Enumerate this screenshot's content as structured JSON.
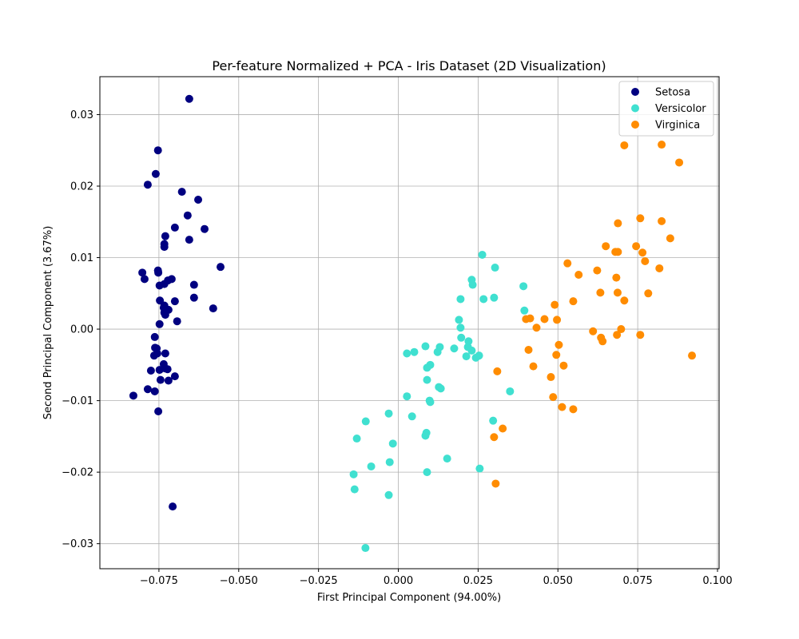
{
  "chart_data": {
    "type": "scatter",
    "title": "Per-feature Normalized + PCA - Iris Dataset (2D Visualization)",
    "xlabel": "First Principal Component (94.00%)",
    "ylabel": "Second Principal Component (3.67%)",
    "xlim": [
      -0.0935,
      0.1005
    ],
    "ylim": [
      -0.0335,
      0.0353
    ],
    "xticks": [
      -0.075,
      -0.05,
      -0.025,
      0.0,
      0.025,
      0.05,
      0.075,
      0.1
    ],
    "xtick_labels": [
      "−0.075",
      "−0.050",
      "−0.025",
      "0.000",
      "0.025",
      "0.050",
      "0.075",
      "0.100"
    ],
    "yticks": [
      -0.03,
      -0.02,
      -0.01,
      0.0,
      0.01,
      0.02,
      0.03
    ],
    "ytick_labels": [
      "−0.03",
      "−0.02",
      "−0.01",
      "0.00",
      "0.01",
      "0.02",
      "0.03"
    ],
    "grid": true,
    "legend_position": "top-right",
    "series": [
      {
        "name": "Setosa",
        "color": "#000080",
        "points": [
          [
            -0.0655,
            0.0322
          ],
          [
            -0.0753,
            0.025
          ],
          [
            -0.076,
            0.0217
          ],
          [
            -0.0785,
            0.0202
          ],
          [
            -0.066,
            0.0159
          ],
          [
            -0.0678,
            0.0192
          ],
          [
            -0.0627,
            0.0181
          ],
          [
            -0.07,
            0.0142
          ],
          [
            -0.0607,
            0.014
          ],
          [
            -0.0655,
            0.0125
          ],
          [
            -0.073,
            0.013
          ],
          [
            -0.0733,
            0.0119
          ],
          [
            -0.0733,
            0.0115
          ],
          [
            -0.0557,
            0.0087
          ],
          [
            -0.0802,
            0.0079
          ],
          [
            -0.0753,
            0.0082
          ],
          [
            -0.0752,
            0.0079
          ],
          [
            -0.0795,
            0.007
          ],
          [
            -0.071,
            0.007
          ],
          [
            -0.0722,
            0.0068
          ],
          [
            -0.0733,
            0.0063
          ],
          [
            -0.0748,
            0.0061
          ],
          [
            -0.064,
            0.0062
          ],
          [
            -0.064,
            0.0044
          ],
          [
            -0.0747,
            0.004
          ],
          [
            -0.07,
            0.0039
          ],
          [
            -0.0733,
            0.0033
          ],
          [
            -0.072,
            0.0027
          ],
          [
            -0.0735,
            0.003
          ],
          [
            -0.0733,
            0.0023
          ],
          [
            -0.073,
            0.002
          ],
          [
            -0.058,
            0.0029
          ],
          [
            -0.0693,
            0.0011
          ],
          [
            -0.0748,
            0.0007
          ],
          [
            -0.0763,
            -0.0011
          ],
          [
            -0.0757,
            -0.0027
          ],
          [
            -0.0762,
            -0.0026
          ],
          [
            -0.0755,
            -0.0034
          ],
          [
            -0.0765,
            -0.0037
          ],
          [
            -0.073,
            -0.0034
          ],
          [
            -0.0735,
            -0.0049
          ],
          [
            -0.073,
            -0.0055
          ],
          [
            -0.0723,
            -0.0056
          ],
          [
            -0.0748,
            -0.0057
          ],
          [
            -0.0775,
            -0.0058
          ],
          [
            -0.07,
            -0.0066
          ],
          [
            -0.0745,
            -0.0071
          ],
          [
            -0.072,
            -0.0072
          ],
          [
            -0.0785,
            -0.0084
          ],
          [
            -0.0763,
            -0.0087
          ],
          [
            -0.083,
            -0.0093
          ],
          [
            -0.0752,
            -0.0115
          ],
          [
            -0.0707,
            -0.0248
          ]
        ]
      },
      {
        "name": "Versicolor",
        "color": "#40e0d0",
        "points": [
          [
            0.0263,
            0.0104
          ],
          [
            0.0303,
            0.0086
          ],
          [
            0.023,
            0.0069
          ],
          [
            0.0233,
            0.0062
          ],
          [
            0.0392,
            0.006
          ],
          [
            0.0267,
            0.0042
          ],
          [
            0.03,
            0.0044
          ],
          [
            0.0195,
            0.0042
          ],
          [
            0.0395,
            0.0026
          ],
          [
            0.019,
            0.0013
          ],
          [
            0.0195,
            0.0002
          ],
          [
            0.0085,
            -0.0024
          ],
          [
            0.013,
            -0.0025
          ],
          [
            0.0123,
            -0.0032
          ],
          [
            0.0175,
            -0.0027
          ],
          [
            0.005,
            -0.0032
          ],
          [
            0.0027,
            -0.0034
          ],
          [
            0.0197,
            -0.0012
          ],
          [
            0.022,
            -0.0017
          ],
          [
            0.0218,
            -0.0025
          ],
          [
            0.023,
            -0.003
          ],
          [
            0.0213,
            -0.0038
          ],
          [
            0.0243,
            -0.004
          ],
          [
            0.0253,
            -0.0037
          ],
          [
            0.01,
            -0.005
          ],
          [
            0.009,
            -0.0054
          ],
          [
            0.009,
            -0.0071
          ],
          [
            0.0127,
            -0.0081
          ],
          [
            0.0133,
            -0.0083
          ],
          [
            0.035,
            -0.0087
          ],
          [
            0.0027,
            -0.0094
          ],
          [
            0.0098,
            -0.01
          ],
          [
            0.01,
            -0.0102
          ],
          [
            -0.003,
            -0.0118
          ],
          [
            0.0043,
            -0.0122
          ],
          [
            -0.0102,
            -0.0129
          ],
          [
            0.0297,
            -0.0128
          ],
          [
            0.0088,
            -0.0145
          ],
          [
            0.0085,
            -0.0149
          ],
          [
            -0.013,
            -0.0153
          ],
          [
            -0.0017,
            -0.016
          ],
          [
            0.0153,
            -0.0181
          ],
          [
            -0.0027,
            -0.0186
          ],
          [
            -0.0085,
            -0.0192
          ],
          [
            0.0255,
            -0.0195
          ],
          [
            0.009,
            -0.02
          ],
          [
            -0.014,
            -0.0203
          ],
          [
            -0.0137,
            -0.0224
          ],
          [
            -0.003,
            -0.0232
          ],
          [
            -0.0103,
            -0.0306
          ]
        ]
      },
      {
        "name": "Virginica",
        "color": "#ff8c00",
        "points": [
          [
            0.0708,
            0.0257
          ],
          [
            0.0825,
            0.0258
          ],
          [
            0.088,
            0.0233
          ],
          [
            0.0758,
            0.0155
          ],
          [
            0.0688,
            0.0148
          ],
          [
            0.0825,
            0.0151
          ],
          [
            0.0852,
            0.0127
          ],
          [
            0.065,
            0.0116
          ],
          [
            0.0745,
            0.0116
          ],
          [
            0.0765,
            0.0107
          ],
          [
            0.068,
            0.0108
          ],
          [
            0.0688,
            0.0108
          ],
          [
            0.0773,
            0.0095
          ],
          [
            0.053,
            0.0092
          ],
          [
            0.0818,
            0.0085
          ],
          [
            0.0623,
            0.0082
          ],
          [
            0.0565,
            0.0076
          ],
          [
            0.0683,
            0.0072
          ],
          [
            0.0633,
            0.0051
          ],
          [
            0.0687,
            0.0051
          ],
          [
            0.0783,
            0.005
          ],
          [
            0.0708,
            0.004
          ],
          [
            0.0548,
            0.0039
          ],
          [
            0.049,
            0.0034
          ],
          [
            0.04,
            0.0014
          ],
          [
            0.0413,
            0.0015
          ],
          [
            0.0458,
            0.0014
          ],
          [
            0.0497,
            0.0013
          ],
          [
            0.0433,
            0.0002
          ],
          [
            0.061,
            -0.0003
          ],
          [
            0.0698,
            0.0
          ],
          [
            0.0685,
            -0.0008
          ],
          [
            0.0758,
            -0.0008
          ],
          [
            0.0635,
            -0.0012
          ],
          [
            0.064,
            -0.0017
          ],
          [
            0.0503,
            -0.0022
          ],
          [
            0.0408,
            -0.0029
          ],
          [
            0.0495,
            -0.0036
          ],
          [
            0.092,
            -0.0037
          ],
          [
            0.0423,
            -0.0052
          ],
          [
            0.0518,
            -0.0051
          ],
          [
            0.031,
            -0.0059
          ],
          [
            0.0478,
            -0.0067
          ],
          [
            0.0485,
            -0.0095
          ],
          [
            0.0513,
            -0.0109
          ],
          [
            0.0548,
            -0.0112
          ],
          [
            0.0327,
            -0.0139
          ],
          [
            0.03,
            -0.0151
          ],
          [
            0.0305,
            -0.0216
          ]
        ]
      }
    ]
  }
}
